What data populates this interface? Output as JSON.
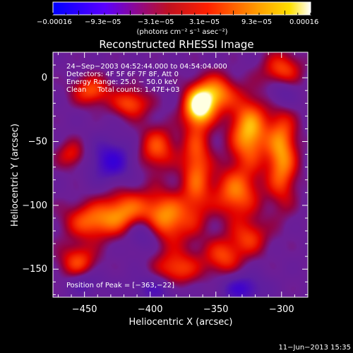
{
  "chart_data": {
    "type": "heatmap",
    "title": "Reconstructed RHESSI Image",
    "xlabel": "Heliocentric X (arcsec)",
    "ylabel": "Heliocentric Y (arcsec)",
    "xlim": [
      -474,
      -280
    ],
    "ylim": [
      -172,
      20
    ],
    "x_ticks": [
      -450,
      -400,
      -350,
      -300
    ],
    "y_ticks": [
      0,
      -50,
      -100,
      -150
    ],
    "x_tick_labels": [
      "−450",
      "−400",
      "−350",
      "−300"
    ],
    "y_tick_labels": [
      "0",
      "−50",
      "−100",
      "−150"
    ],
    "colorbar": {
      "range": [
        -0.00016,
        0.00016
      ],
      "tick_labels": [
        "−0.00016",
        "−9.3e−05",
        "−3.1e−05",
        "3.1e−05",
        "9.3e−05",
        "0.00016"
      ],
      "unit_label": "(photons cm⁻² s⁻¹ asec⁻²)",
      "colors": [
        "#0000ff",
        "#7f00ff",
        "#e00000",
        "#ff8000",
        "#ffd000",
        "#ffffff"
      ]
    },
    "annotations": [
      "24−Sep−2003 04:52:44.000 to 04:54:04.000",
      "Detectors: 4F 5F 6F 7F 8F, Att 0",
      "Energy Range: 25.0 − 50.0 keV",
      "Clean     Total counts: 1.47E+03"
    ],
    "peak_label": "Position of Peak = [−363,−22]",
    "peak": [
      -363,
      -22
    ],
    "sources": [
      {
        "x": -363,
        "y": -22,
        "intensity": 1.0,
        "sx": 8,
        "sy": 10
      },
      {
        "x": -325,
        "y": -42,
        "intensity": 0.85,
        "sx": 10,
        "sy": 18
      },
      {
        "x": -350,
        "y": -12,
        "intensity": 0.7,
        "sx": 10,
        "sy": 10
      },
      {
        "x": -300,
        "y": -60,
        "intensity": 0.75,
        "sx": 8,
        "sy": 26
      },
      {
        "x": -335,
        "y": -90,
        "intensity": 0.65,
        "sx": 12,
        "sy": 14
      },
      {
        "x": -365,
        "y": -70,
        "intensity": 0.6,
        "sx": 8,
        "sy": 28
      },
      {
        "x": -390,
        "y": -110,
        "intensity": 0.8,
        "sx": 14,
        "sy": 14
      },
      {
        "x": -420,
        "y": -105,
        "intensity": 0.6,
        "sx": 12,
        "sy": 12
      },
      {
        "x": -445,
        "y": -112,
        "intensity": 0.6,
        "sx": 14,
        "sy": 10
      },
      {
        "x": -455,
        "y": -145,
        "intensity": 0.55,
        "sx": 10,
        "sy": 10
      },
      {
        "x": -380,
        "y": -150,
        "intensity": 0.55,
        "sx": 12,
        "sy": 10
      },
      {
        "x": -345,
        "y": -140,
        "intensity": 0.5,
        "sx": 10,
        "sy": 10
      },
      {
        "x": -395,
        "y": -55,
        "intensity": 0.55,
        "sx": 10,
        "sy": 12
      },
      {
        "x": -415,
        "y": -20,
        "intensity": 0.55,
        "sx": 10,
        "sy": 8
      },
      {
        "x": -445,
        "y": -10,
        "intensity": 0.55,
        "sx": 10,
        "sy": 8
      },
      {
        "x": -300,
        "y": 5,
        "intensity": 0.6,
        "sx": 10,
        "sy": 10
      },
      {
        "x": -325,
        "y": -125,
        "intensity": 0.45,
        "sx": 10,
        "sy": 10
      },
      {
        "x": -460,
        "y": -60,
        "intensity": 0.4,
        "sx": 8,
        "sy": 8
      },
      {
        "x": -405,
        "y": -120,
        "intensity": -0.55,
        "sx": 10,
        "sy": 10
      },
      {
        "x": -430,
        "y": -65,
        "intensity": -0.5,
        "sx": 12,
        "sy": 12
      },
      {
        "x": -330,
        "y": -165,
        "intensity": -0.45,
        "sx": 12,
        "sy": 8
      },
      {
        "x": -300,
        "y": -10,
        "intensity": -0.45,
        "sx": 8,
        "sy": 10
      },
      {
        "x": -395,
        "y": -165,
        "intensity": -0.35,
        "sx": 14,
        "sy": 8
      },
      {
        "x": -450,
        "y": -160,
        "intensity": -0.35,
        "sx": 10,
        "sy": 8
      }
    ]
  },
  "footer_timestamp": "11−Jun−2013 15:35"
}
